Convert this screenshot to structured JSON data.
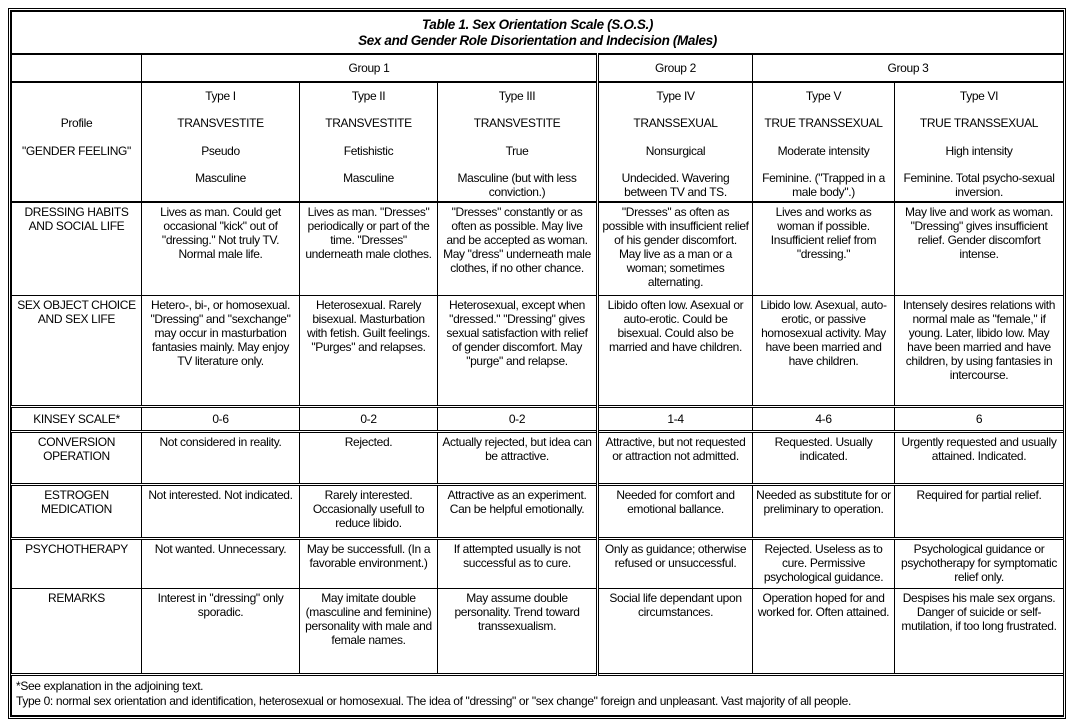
{
  "title": {
    "line1": "Table 1. Sex Orientation Scale (S.O.S.)",
    "line2": "Sex and Gender Role Disorientation and Indecision (Males)"
  },
  "groups": [
    "Group 1",
    "Group 2",
    "Group 3"
  ],
  "profile_labels": [
    "Profile",
    "\"GENDER FEELING\""
  ],
  "types": [
    {
      "name": "Type I",
      "profile": "TRANSVESTITE",
      "kind": "Pseudo",
      "gender_feeling": "Masculine"
    },
    {
      "name": "Type II",
      "profile": "TRANSVESTITE",
      "kind": "Fetishistic",
      "gender_feeling": "Masculine"
    },
    {
      "name": "Type III",
      "profile": "TRANSVESTITE",
      "kind": "True",
      "gender_feeling": "Masculine (but with less conviction.)"
    },
    {
      "name": "Type IV",
      "profile": "TRANSSEXUAL",
      "kind": "Nonsurgical",
      "gender_feeling": "Undecided. Wavering between TV and TS."
    },
    {
      "name": "Type V",
      "profile": "TRUE TRANSSEXUAL",
      "kind": "Moderate intensity",
      "gender_feeling": "Feminine. (\"Trapped in a male body\".)"
    },
    {
      "name": "Type VI",
      "profile": "TRUE TRANSSEXUAL",
      "kind": "High intensity",
      "gender_feeling": "Feminine. Total psycho-sexual inversion."
    }
  ],
  "rows": [
    {
      "label": "DRESSING HABITS AND SOCIAL LIFE",
      "values": [
        "Lives as man. Could get occasional \"kick\" out of \"dressing.\" Not truly TV. Normal male life.",
        "Lives as man. \"Dresses\" periodically or part of the time. \"Dresses\" underneath male clothes.",
        "\"Dresses\" constantly or as often as possible. May live and be accepted as woman. May \"dress\" underneath male clothes, if no other chance.",
        "\"Dresses\" as often as possible with insufficient relief of his gender discomfort. May live as a man or a woman; sometimes alternating.",
        "Lives and works as woman if possible. Insufficient relief from \"dressing.\"",
        "May live and work as woman. \"Dressing\" gives insufficient relief. Gender discomfort intense."
      ]
    },
    {
      "label": "SEX OBJECT CHOICE AND SEX LIFE",
      "values": [
        "Hetero-, bi-, or homosexual. \"Dressing\" and \"sexchange\" may occur in masturbation fantasies mainly. May enjoy TV literature only.",
        "Heterosexual. Rarely bisexual. Masturbation with fetish. Guilt feelings. \"Purges\" and relapses.",
        "Heterosexual, except when \"dressed.\" \"Dressing\" gives sexual satisfaction with relief of gender discomfort. May \"purge\" and relapse.",
        "Libido often low. Asexual or auto-erotic. Could be bisexual. Could also be married and have children.",
        "Libido low. Asexual, auto-erotic, or passive homosexual activity. May have been married and have children.",
        "Intensely desires relations with normal male as \"female,\" if young. Later, libido low. May have been married and have children, by using fantasies in intercourse."
      ]
    },
    {
      "label": "KINSEY SCALE*",
      "values": [
        "0-6",
        "0-2",
        "0-2",
        "1-4",
        "4-6",
        "6"
      ]
    },
    {
      "label": "CONVERSION OPERATION",
      "values": [
        "Not considered in reality.",
        "Rejected.",
        "Actually rejected, but idea can be attractive.",
        "Attractive, but not requested or attraction not admitted.",
        "Requested. Usually indicated.",
        "Urgently requested and usually attained. Indicated."
      ]
    },
    {
      "label": "ESTROGEN MEDICATION",
      "values": [
        "Not interested. Not indicated.",
        "Rarely interested. Occasionally usefull to reduce libido.",
        "Attractive as an experiment. Can be helpful emotionally.",
        "Needed for comfort and emotional ballance.",
        "Needed as substitute for or preliminary to operation.",
        "Required for partial relief."
      ]
    },
    {
      "label": "PSYCHOTHERAPY",
      "values": [
        "Not wanted. Unnecessary.",
        "May be successfull. (In a favorable environment.)",
        "If attempted usually is not successful as to cure.",
        "Only as guidance; otherwise refused or unsuccessful.",
        "Rejected. Useless as to cure. Permissive psychological guidance.",
        "Psychological guidance or psychotherapy for symptomatic relief only."
      ]
    },
    {
      "label": "REMARKS",
      "values": [
        "Interest in \"dressing\" only sporadic.",
        "May imitate double (masculine and feminine) personality with male and female names.",
        "May assume double personality. Trend toward transsexualism.",
        "Social life dependant upon circumstances.",
        "Operation hoped for and worked for. Often attained.",
        "Despises his male sex organs. Danger of suicide or self-mutilation, if too long frustrated."
      ]
    }
  ],
  "footnotes": [
    "*See explanation in the adjoining text.",
    "Type 0: normal sex orientation and identification, heterosexual or homosexual. The idea of \"dressing\" or \"sex change\" foreign and unpleasant. Vast majority of all people."
  ]
}
